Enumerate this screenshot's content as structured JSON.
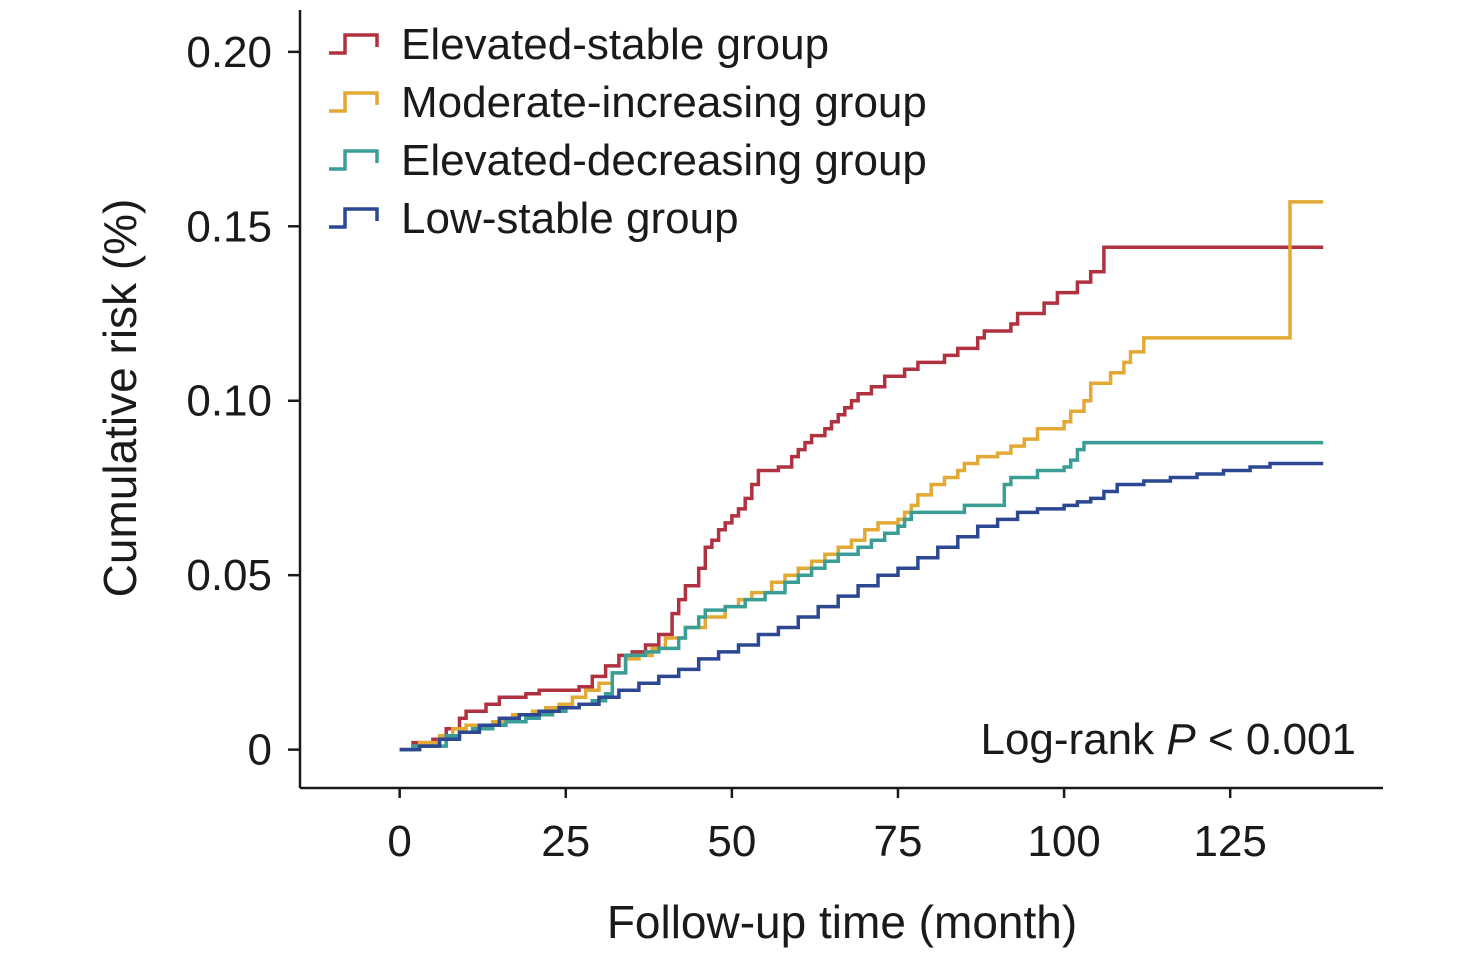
{
  "chart_data": {
    "type": "line",
    "step": true,
    "xlabel": "Follow-up time (month)",
    "ylabel": "Cumulative risk (%)",
    "xlim": [
      -15,
      148
    ],
    "ylim": [
      -0.011,
      0.212
    ],
    "x_ticks": [
      0,
      25,
      50,
      75,
      100,
      125
    ],
    "x_tick_labels": [
      "0",
      "25",
      "50",
      "75",
      "100",
      "125"
    ],
    "y_ticks": [
      0,
      0.05,
      0.1,
      0.15,
      0.2
    ],
    "y_tick_labels": [
      "0",
      "0.05",
      "0.10",
      "0.15",
      "0.20"
    ],
    "annotation": {
      "prefix": "Log-rank ",
      "stat": "P",
      "suffix": " < 0.001"
    },
    "legend_position": "top-left",
    "series": [
      {
        "name": "Elevated-stable group",
        "color": "#b0313f",
        "points": [
          [
            0,
            0
          ],
          [
            2,
            0.002
          ],
          [
            5,
            0.003
          ],
          [
            7,
            0.006
          ],
          [
            9,
            0.009
          ],
          [
            10,
            0.011
          ],
          [
            13,
            0.013
          ],
          [
            15,
            0.015
          ],
          [
            19,
            0.016
          ],
          [
            21,
            0.017
          ],
          [
            27,
            0.018
          ],
          [
            29,
            0.021
          ],
          [
            31,
            0.024
          ],
          [
            33,
            0.027
          ],
          [
            35,
            0.028
          ],
          [
            37,
            0.03
          ],
          [
            39,
            0.033
          ],
          [
            41,
            0.039
          ],
          [
            42,
            0.043
          ],
          [
            43,
            0.047
          ],
          [
            45,
            0.052
          ],
          [
            46,
            0.058
          ],
          [
            47,
            0.06
          ],
          [
            48,
            0.063
          ],
          [
            49,
            0.065
          ],
          [
            50,
            0.067
          ],
          [
            51,
            0.069
          ],
          [
            52,
            0.072
          ],
          [
            53,
            0.076
          ],
          [
            54,
            0.08
          ],
          [
            57,
            0.081
          ],
          [
            59,
            0.084
          ],
          [
            60,
            0.086
          ],
          [
            61,
            0.088
          ],
          [
            62,
            0.09
          ],
          [
            64,
            0.092
          ],
          [
            65,
            0.094
          ],
          [
            66,
            0.096
          ],
          [
            67,
            0.098
          ],
          [
            68,
            0.1
          ],
          [
            69,
            0.102
          ],
          [
            71,
            0.104
          ],
          [
            73,
            0.107
          ],
          [
            76,
            0.109
          ],
          [
            78,
            0.111
          ],
          [
            82,
            0.113
          ],
          [
            84,
            0.115
          ],
          [
            87,
            0.118
          ],
          [
            88,
            0.12
          ],
          [
            92,
            0.122
          ],
          [
            93,
            0.125
          ],
          [
            97,
            0.128
          ],
          [
            99,
            0.131
          ],
          [
            102,
            0.134
          ],
          [
            104,
            0.137
          ],
          [
            106,
            0.144
          ],
          [
            139,
            0.144
          ]
        ]
      },
      {
        "name": "Moderate-increasing group",
        "color": "#e3a935",
        "points": [
          [
            0,
            0
          ],
          [
            3,
            0.002
          ],
          [
            6,
            0.004
          ],
          [
            8,
            0.006
          ],
          [
            10,
            0.007
          ],
          [
            14,
            0.008
          ],
          [
            17,
            0.01
          ],
          [
            20,
            0.011
          ],
          [
            22,
            0.012
          ],
          [
            24,
            0.013
          ],
          [
            26,
            0.015
          ],
          [
            28,
            0.017
          ],
          [
            30,
            0.019
          ],
          [
            32,
            0.022
          ],
          [
            34,
            0.026
          ],
          [
            36,
            0.027
          ],
          [
            38,
            0.029
          ],
          [
            40,
            0.032
          ],
          [
            43,
            0.035
          ],
          [
            46,
            0.038
          ],
          [
            49,
            0.041
          ],
          [
            51,
            0.043
          ],
          [
            53,
            0.045
          ],
          [
            56,
            0.048
          ],
          [
            58,
            0.05
          ],
          [
            60,
            0.052
          ],
          [
            62,
            0.054
          ],
          [
            64,
            0.056
          ],
          [
            66,
            0.058
          ],
          [
            68,
            0.06
          ],
          [
            70,
            0.063
          ],
          [
            72,
            0.065
          ],
          [
            75,
            0.066
          ],
          [
            76,
            0.068
          ],
          [
            77,
            0.07
          ],
          [
            78,
            0.073
          ],
          [
            80,
            0.076
          ],
          [
            82,
            0.078
          ],
          [
            84,
            0.08
          ],
          [
            85,
            0.082
          ],
          [
            87,
            0.084
          ],
          [
            90,
            0.085
          ],
          [
            92,
            0.087
          ],
          [
            94,
            0.089
          ],
          [
            96,
            0.092
          ],
          [
            100,
            0.094
          ],
          [
            101,
            0.097
          ],
          [
            103,
            0.1
          ],
          [
            104,
            0.105
          ],
          [
            107,
            0.108
          ],
          [
            109,
            0.111
          ],
          [
            110,
            0.114
          ],
          [
            112,
            0.118
          ],
          [
            134,
            0.118
          ],
          [
            134,
            0.157
          ],
          [
            139,
            0.157
          ]
        ]
      },
      {
        "name": "Elevated-decreasing group",
        "color": "#3a9d96",
        "points": [
          [
            0,
            0
          ],
          [
            2,
            0.001
          ],
          [
            6,
            0.001
          ],
          [
            7,
            0.004
          ],
          [
            9,
            0.005
          ],
          [
            11,
            0.006
          ],
          [
            14,
            0.007
          ],
          [
            16,
            0.008
          ],
          [
            19,
            0.009
          ],
          [
            21,
            0.01
          ],
          [
            23,
            0.011
          ],
          [
            25,
            0.012
          ],
          [
            27,
            0.013
          ],
          [
            29,
            0.014
          ],
          [
            31,
            0.016
          ],
          [
            32,
            0.022
          ],
          [
            34,
            0.027
          ],
          [
            37,
            0.028
          ],
          [
            39,
            0.029
          ],
          [
            42,
            0.032
          ],
          [
            43,
            0.035
          ],
          [
            45,
            0.038
          ],
          [
            46,
            0.04
          ],
          [
            49,
            0.041
          ],
          [
            52,
            0.043
          ],
          [
            55,
            0.045
          ],
          [
            58,
            0.048
          ],
          [
            60,
            0.05
          ],
          [
            62,
            0.052
          ],
          [
            64,
            0.054
          ],
          [
            66,
            0.056
          ],
          [
            69,
            0.058
          ],
          [
            71,
            0.06
          ],
          [
            73,
            0.062
          ],
          [
            75,
            0.064
          ],
          [
            76,
            0.066
          ],
          [
            77,
            0.068
          ],
          [
            85,
            0.068
          ],
          [
            85,
            0.07
          ],
          [
            91,
            0.07
          ],
          [
            91,
            0.076
          ],
          [
            92,
            0.078
          ],
          [
            96,
            0.08
          ],
          [
            100,
            0.081
          ],
          [
            101,
            0.083
          ],
          [
            102,
            0.086
          ],
          [
            103,
            0.088
          ],
          [
            139,
            0.088
          ]
        ]
      },
      {
        "name": "Low-stable group",
        "color": "#2c4893",
        "points": [
          [
            0,
            0
          ],
          [
            3,
            0.001
          ],
          [
            6,
            0.003
          ],
          [
            9,
            0.005
          ],
          [
            12,
            0.007
          ],
          [
            15,
            0.009
          ],
          [
            18,
            0.01
          ],
          [
            21,
            0.011
          ],
          [
            24,
            0.012
          ],
          [
            27,
            0.013
          ],
          [
            30,
            0.015
          ],
          [
            33,
            0.017
          ],
          [
            36,
            0.019
          ],
          [
            39,
            0.021
          ],
          [
            42,
            0.023
          ],
          [
            45,
            0.026
          ],
          [
            48,
            0.028
          ],
          [
            51,
            0.03
          ],
          [
            54,
            0.033
          ],
          [
            57,
            0.035
          ],
          [
            60,
            0.038
          ],
          [
            63,
            0.041
          ],
          [
            66,
            0.044
          ],
          [
            69,
            0.047
          ],
          [
            72,
            0.05
          ],
          [
            75,
            0.052
          ],
          [
            78,
            0.055
          ],
          [
            81,
            0.058
          ],
          [
            84,
            0.061
          ],
          [
            87,
            0.064
          ],
          [
            90,
            0.066
          ],
          [
            93,
            0.068
          ],
          [
            96,
            0.069
          ],
          [
            100,
            0.07
          ],
          [
            102,
            0.071
          ],
          [
            104,
            0.072
          ],
          [
            106,
            0.074
          ],
          [
            108,
            0.076
          ],
          [
            112,
            0.077
          ],
          [
            116,
            0.078
          ],
          [
            120,
            0.079
          ],
          [
            124,
            0.08
          ],
          [
            128,
            0.081
          ],
          [
            131,
            0.082
          ],
          [
            139,
            0.082
          ]
        ]
      }
    ]
  }
}
